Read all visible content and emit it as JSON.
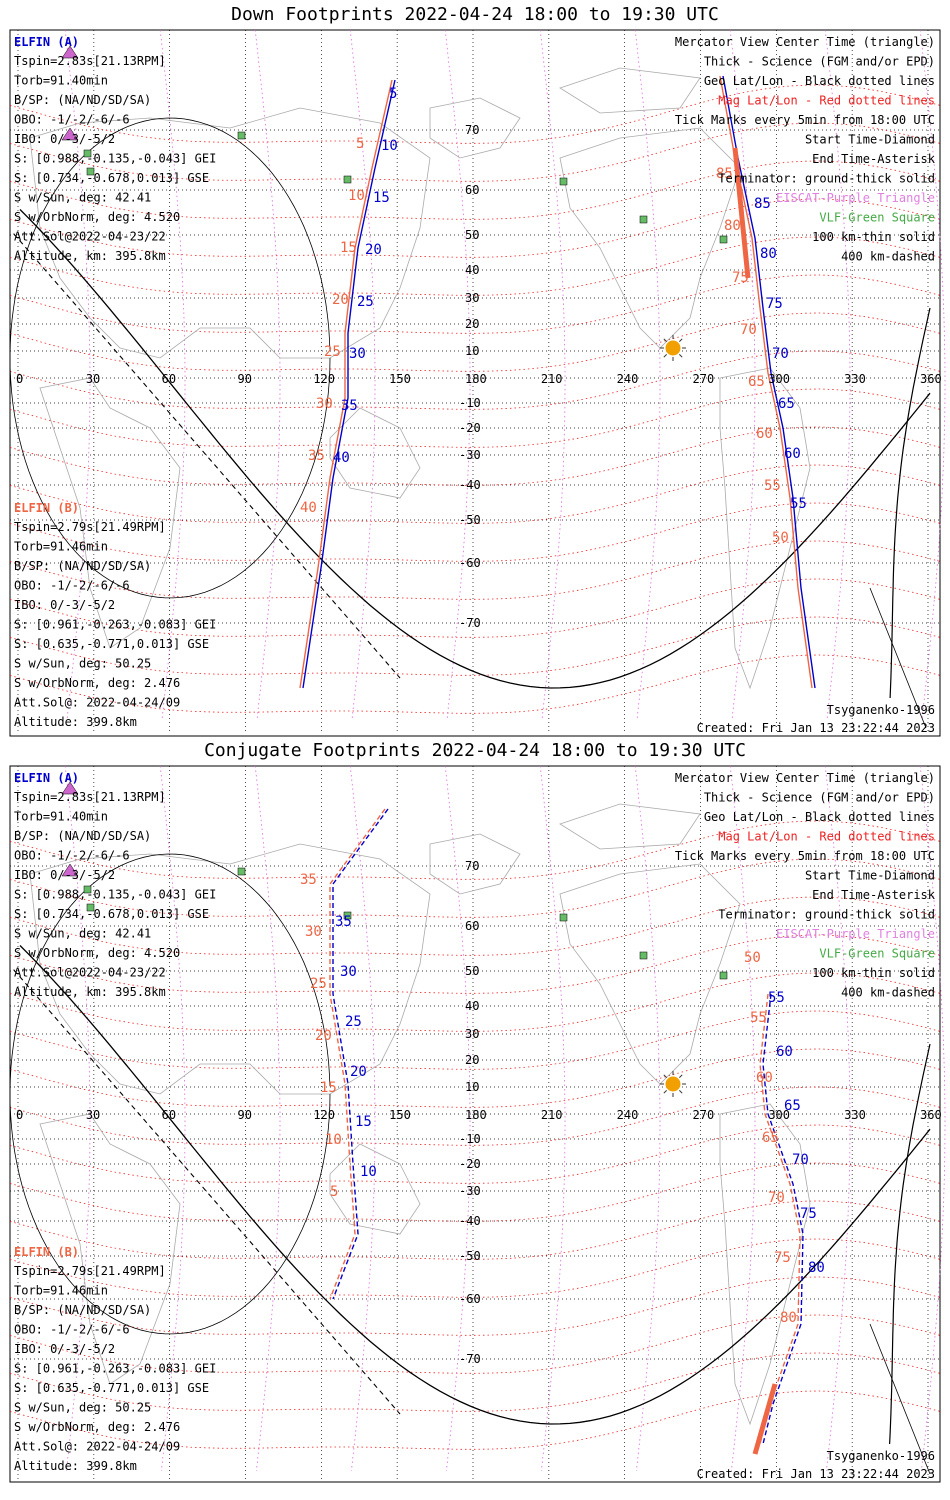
{
  "panels": [
    {
      "title": "Down Footprints 2022-04-24 18:00 to 19:30 UTC",
      "sat_a": {
        "name": "ELFIN (A)",
        "lines": [
          "Tspin=2.83s[21.13RPM]",
          "Torb=91.40min",
          "B/SP: (NA/ND/SD/SA)",
          "OBO: -1/-2/-6/-6",
          "IBO: 0/-3/-5/2",
          "S: [0.988,-0.135,-0.043] GEI",
          "S: [0.734,-0.678,0.013] GSE",
          "S w/Sun, deg: 42.41",
          "S w/OrbNorm, deg: 4.520",
          "Att.Sol@2022-04-23/22",
          "Altitude, km: 395.8km"
        ]
      },
      "sat_b": {
        "name": "ELFIN (B)",
        "lines": [
          "Tspin=2.79s[21.49RPM]",
          "Torb=91.46min",
          "B/SP: (NA/ND/SD/SA)",
          "OBO: -1/-2/-6/-6",
          "IBO: 0/-3/-5/2",
          "S: [0.961,-0.263,-0.083] GEI",
          "S: [0.635,-0.771,0.013] GSE",
          "S w/Sun, deg: 50.25",
          "S w/OrbNorm, deg: 2.476",
          "Att.Sol@: 2022-04-24/09",
          "Altitude: 399.8km"
        ]
      },
      "legend": [
        {
          "text": "Mercator View Center Time (triangle)",
          "color": "#000000"
        },
        {
          "text": "Thick - Science (FGM and/or EPD)",
          "color": "#000000"
        },
        {
          "text": "Geo Lat/Lon - Black dotted lines",
          "color": "#000000"
        },
        {
          "text": "Mag Lat/Lon - Red dotted lines",
          "color": "#ee2222"
        },
        {
          "text": "Tick Marks every 5min from 18:00 UTC",
          "color": "#000000"
        },
        {
          "text": "Start Time-Diamond",
          "color": "#000000"
        },
        {
          "text": "End Time-Asterisk",
          "color": "#000000"
        },
        {
          "text": "Terminator: ground-thick solid",
          "color": "#000000"
        },
        {
          "text": "EISCAT-Purple Triangle",
          "color": "#e080e0"
        },
        {
          "text": "VLF-Green Square",
          "color": "#44aa44"
        },
        {
          "text": "100 km-thin solid",
          "color": "#000000"
        },
        {
          "text": "400 km-dashed",
          "color": "#000000"
        }
      ],
      "model": "Tsyganenko-1996",
      "created": "Created: Fri Jan 13 23:22:44 2023",
      "lon_ticks": [
        "0",
        "30",
        "60",
        "90",
        "120",
        "150",
        "180",
        "210",
        "240",
        "270",
        "300",
        "330",
        "360"
      ],
      "lat_ticks": [
        "70",
        "60",
        "50",
        "40",
        "30",
        "20",
        "10",
        "-10",
        "-20",
        "-30",
        "-40",
        "-50",
        "-60",
        "-70"
      ],
      "a_track_labels": [
        "5",
        "10",
        "15",
        "20",
        "25",
        "30",
        "35",
        "40"
      ],
      "b_track_labels": [
        "5",
        "10",
        "15",
        "20",
        "25",
        "30",
        "35",
        "40"
      ],
      "a_track2_labels": [
        "85",
        "80",
        "75",
        "70",
        "65",
        "60",
        "55"
      ],
      "b_track2_labels": [
        "85",
        "80",
        "75",
        "70",
        "65",
        "60",
        "55",
        "50"
      ]
    },
    {
      "title": "Conjugate Footprints 2022-04-24 18:00 to 19:30 UTC",
      "sat_a": {
        "name": "ELFIN (A)",
        "lines": [
          "Tspin=2.83s[21.13RPM]",
          "Torb=91.40min",
          "B/SP: (NA/ND/SD/SA)",
          "OBO: -1/-2/-6/-6",
          "IBO: 0/-3/-5/2",
          "S: [0.988,-0.135,-0.043] GEI",
          "S: [0.734,-0.678,0.013] GSE",
          "S w/Sun, deg: 42.41",
          "S w/OrbNorm, deg: 4.520",
          "Att.Sol@2022-04-23/22",
          "Altitude, km: 395.8km"
        ]
      },
      "sat_b": {
        "name": "ELFIN (B)",
        "lines": [
          "Tspin=2.79s[21.49RPM]",
          "Torb=91.46min",
          "B/SP: (NA/ND/SD/SA)",
          "OBO: -1/-2/-6/-6",
          "IBO: 0/-3/-5/2",
          "S: [0.961,-0.263,-0.083] GEI",
          "S: [0.635,-0.771,0.013] GSE",
          "S w/Sun, deg: 50.25",
          "S w/OrbNorm, deg: 2.476",
          "Att.Sol@: 2022-04-24/09",
          "Altitude: 399.8km"
        ]
      },
      "legend": [
        {
          "text": "Mercator View Center Time (triangle)",
          "color": "#000000"
        },
        {
          "text": "Thick - Science (FGM and/or EPD)",
          "color": "#000000"
        },
        {
          "text": "Geo Lat/Lon - Black dotted lines",
          "color": "#000000"
        },
        {
          "text": "Mag Lat/Lon - Red dotted lines",
          "color": "#ee2222"
        },
        {
          "text": "Tick Marks every 5min from 18:00 UTC",
          "color": "#000000"
        },
        {
          "text": "Start Time-Diamond",
          "color": "#000000"
        },
        {
          "text": "End Time-Asterisk",
          "color": "#000000"
        },
        {
          "text": "Terminator: ground-thick solid",
          "color": "#000000"
        },
        {
          "text": "EISCAT-Purple Triangle",
          "color": "#e080e0"
        },
        {
          "text": "VLF-Green Square",
          "color": "#44aa44"
        },
        {
          "text": "100 km-thin solid",
          "color": "#000000"
        },
        {
          "text": "400 km-dashed",
          "color": "#000000"
        }
      ],
      "model": "Tsyganenko-1996",
      "created": "Created: Fri Jan 13 23:22:44 2023",
      "lon_ticks": [
        "0",
        "30",
        "60",
        "90",
        "120",
        "150",
        "180",
        "210",
        "240",
        "270",
        "300",
        "330",
        "360"
      ],
      "lat_ticks": [
        "70",
        "60",
        "50",
        "40",
        "30",
        "20",
        "10",
        "-10",
        "-20",
        "-30",
        "-40",
        "-50",
        "-60",
        "-70"
      ],
      "a_track_labels": [
        "35",
        "30",
        "25",
        "20",
        "15",
        "10"
      ],
      "b_track_labels": [
        "35",
        "30",
        "25",
        "20",
        "15",
        "10",
        "5"
      ],
      "a_track2_labels": [
        "55",
        "60",
        "65",
        "70",
        "75",
        "80"
      ],
      "b_track2_labels": [
        "50",
        "55",
        "60",
        "65",
        "70",
        "75",
        "80"
      ]
    }
  ],
  "colors": {
    "sat_a": "#0000cc",
    "sat_b": "#ee6644",
    "mag_grid": "#ee2222",
    "geo_grid": "#000000",
    "eiscat": "#e080e0",
    "vlf": "#44aa44",
    "sun": "#f0a000"
  }
}
